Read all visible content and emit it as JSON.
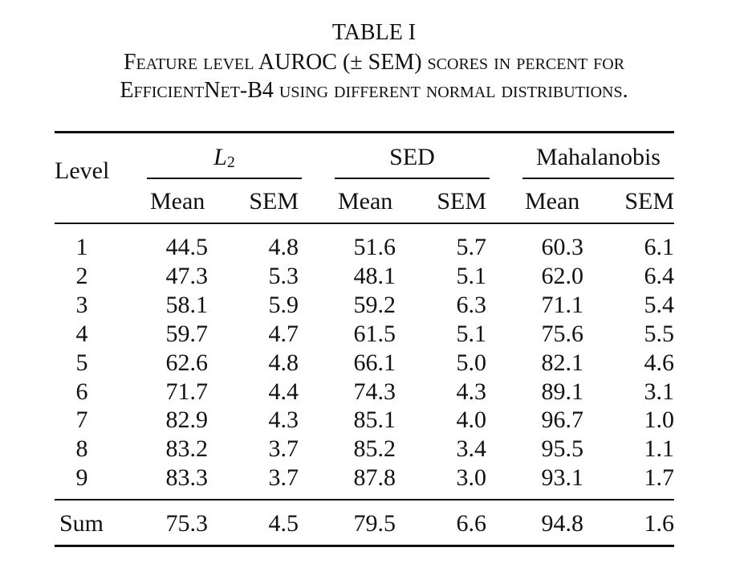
{
  "caption": {
    "label": "TABLE I",
    "line1_a": "Feature level AUROC (",
    "line1_pm": "± SEM",
    "line1_b": ") scores in percent for",
    "line2_a": "EfficientNet-B4",
    "line2_b": " using different normal distributions."
  },
  "table": {
    "level_header": "Level",
    "groups": [
      {
        "name_main": "L",
        "name_sub": "2"
      },
      {
        "name": "SED"
      },
      {
        "name": "Mahalanobis"
      }
    ],
    "subheaders": [
      "Mean",
      "SEM",
      "Mean",
      "SEM",
      "Mean",
      "SEM"
    ],
    "rows": [
      {
        "level": "1",
        "values": [
          "44.5",
          "4.8",
          "51.6",
          "5.7",
          "60.3",
          "6.1"
        ]
      },
      {
        "level": "2",
        "values": [
          "47.3",
          "5.3",
          "48.1",
          "5.1",
          "62.0",
          "6.4"
        ]
      },
      {
        "level": "3",
        "values": [
          "58.1",
          "5.9",
          "59.2",
          "6.3",
          "71.1",
          "5.4"
        ]
      },
      {
        "level": "4",
        "values": [
          "59.7",
          "4.7",
          "61.5",
          "5.1",
          "75.6",
          "5.5"
        ]
      },
      {
        "level": "5",
        "values": [
          "62.6",
          "4.8",
          "66.1",
          "5.0",
          "82.1",
          "4.6"
        ]
      },
      {
        "level": "6",
        "values": [
          "71.7",
          "4.4",
          "74.3",
          "4.3",
          "89.1",
          "3.1"
        ]
      },
      {
        "level": "7",
        "values": [
          "82.9",
          "4.3",
          "85.1",
          "4.0",
          "96.7",
          "1.0"
        ]
      },
      {
        "level": "8",
        "values": [
          "83.2",
          "3.7",
          "85.2",
          "3.4",
          "95.5",
          "1.1"
        ]
      },
      {
        "level": "9",
        "values": [
          "83.3",
          "3.7",
          "87.8",
          "3.0",
          "93.1",
          "1.7"
        ]
      }
    ],
    "sum_row": {
      "level": "Sum",
      "values": [
        "75.3",
        "4.5",
        "79.5",
        "6.6",
        "94.8",
        "1.6"
      ]
    }
  }
}
